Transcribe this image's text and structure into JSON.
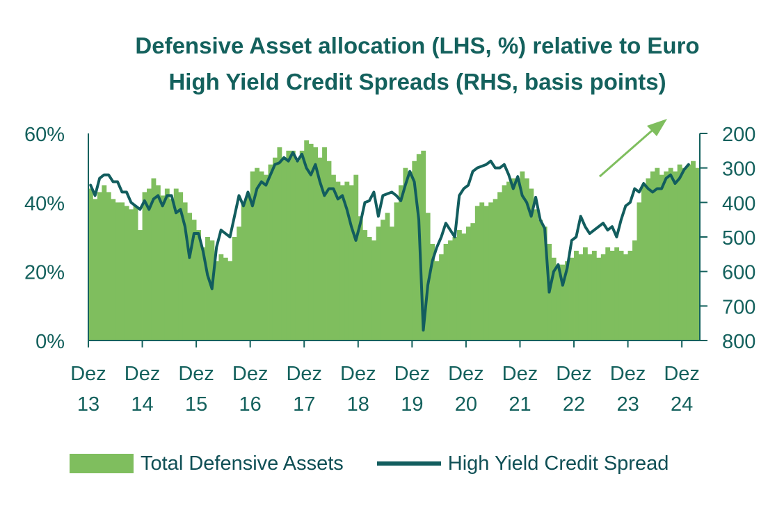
{
  "colors": {
    "bar": "#7fbe5e",
    "line": "#125d5e",
    "axis": "#14615d",
    "text": "#0f4f55",
    "arrow": "#7fbe5e"
  },
  "chart_data": {
    "type": "bar",
    "title": "Defensive Asset allocation (LHS, %) relative to Euro High Yield Credit Spreads (RHS, basis points)",
    "title_lines": [
      "Defensive Asset allocation (LHS, %) relative to Euro",
      "High Yield Credit Spreads (RHS, basis points)"
    ],
    "x_ticks": [
      {
        "month": "Dez",
        "year": "13",
        "t": 0
      },
      {
        "month": "Dez",
        "year": "14",
        "t": 12
      },
      {
        "month": "Dez",
        "year": "15",
        "t": 24
      },
      {
        "month": "Dez",
        "year": "16",
        "t": 36
      },
      {
        "month": "Dez",
        "year": "17",
        "t": 48
      },
      {
        "month": "Dez",
        "year": "18",
        "t": 60
      },
      {
        "month": "Dez",
        "year": "19",
        "t": 72
      },
      {
        "month": "Dez",
        "year": "20",
        "t": 84
      },
      {
        "month": "Dez",
        "year": "21",
        "t": 96
      },
      {
        "month": "Dez",
        "year": "22",
        "t": 108
      },
      {
        "month": "Dez",
        "year": "23",
        "t": 120
      },
      {
        "month": "Dez",
        "year": "24",
        "t": 132
      }
    ],
    "left_axis": {
      "ticks": [
        "0%",
        "20%",
        "40%",
        "60%"
      ],
      "range": [
        0,
        60
      ]
    },
    "right_axis": {
      "ticks": [
        "200",
        "300",
        "400",
        "500",
        "600",
        "700",
        "800"
      ],
      "range": [
        800,
        200
      ],
      "inverted": true
    },
    "grid": false,
    "legend_position": "bottom",
    "series": [
      {
        "name": "Total Defensive Assets",
        "type": "bar",
        "axis": "left",
        "values": [
          44,
          41,
          43,
          45,
          43,
          41,
          40,
          40,
          39,
          38,
          39,
          32,
          43,
          44,
          47,
          45,
          42,
          44,
          41,
          44,
          43,
          40,
          37,
          35,
          32,
          27,
          30,
          29,
          23,
          25,
          24,
          23,
          30,
          33,
          40,
          42,
          49,
          50,
          49,
          48,
          51,
          53,
          56,
          53,
          55,
          55,
          52,
          55,
          58,
          57,
          56,
          53,
          56,
          52,
          48,
          46,
          45,
          46,
          45,
          48,
          36,
          32,
          30,
          29,
          33,
          35,
          37,
          33,
          40,
          45,
          50,
          49,
          52,
          54,
          55,
          37,
          28,
          23,
          25,
          28,
          29,
          30,
          32,
          31,
          33,
          34,
          39,
          40,
          39,
          40,
          41,
          43,
          45,
          46,
          47,
          47,
          49,
          47,
          44,
          38,
          35,
          33,
          28,
          24,
          22,
          22,
          23,
          24,
          26,
          25,
          27,
          25,
          26,
          24,
          25,
          27,
          26,
          27,
          26,
          25,
          26,
          29,
          40,
          45,
          47,
          49,
          50,
          48,
          49,
          50,
          49,
          51,
          50,
          51,
          52,
          50
        ]
      },
      {
        "name": "High Yield Credit Spread",
        "type": "line",
        "axis": "right",
        "values": [
          350,
          380,
          330,
          320,
          320,
          340,
          340,
          370,
          370,
          400,
          410,
          420,
          395,
          420,
          390,
          380,
          410,
          380,
          380,
          430,
          420,
          470,
          560,
          490,
          490,
          540,
          610,
          650,
          530,
          480,
          490,
          500,
          440,
          380,
          410,
          370,
          410,
          360,
          340,
          350,
          320,
          290,
          285,
          270,
          280,
          255,
          280,
          260,
          300,
          320,
          290,
          340,
          380,
          360,
          360,
          390,
          380,
          420,
          470,
          510,
          460,
          400,
          395,
          370,
          440,
          380,
          375,
          370,
          380,
          395,
          350,
          310,
          340,
          450,
          770,
          640,
          570,
          530,
          500,
          460,
          480,
          500,
          380,
          360,
          350,
          310,
          300,
          295,
          290,
          280,
          300,
          300,
          290,
          320,
          360,
          325,
          380,
          400,
          440,
          385,
          450,
          475,
          660,
          600,
          580,
          640,
          590,
          510,
          500,
          440,
          470,
          490,
          480,
          470,
          460,
          480,
          470,
          500,
          450,
          410,
          400,
          360,
          370,
          345,
          360,
          370,
          360,
          360,
          330,
          320,
          345,
          330,
          305,
          290
        ]
      }
    ]
  }
}
